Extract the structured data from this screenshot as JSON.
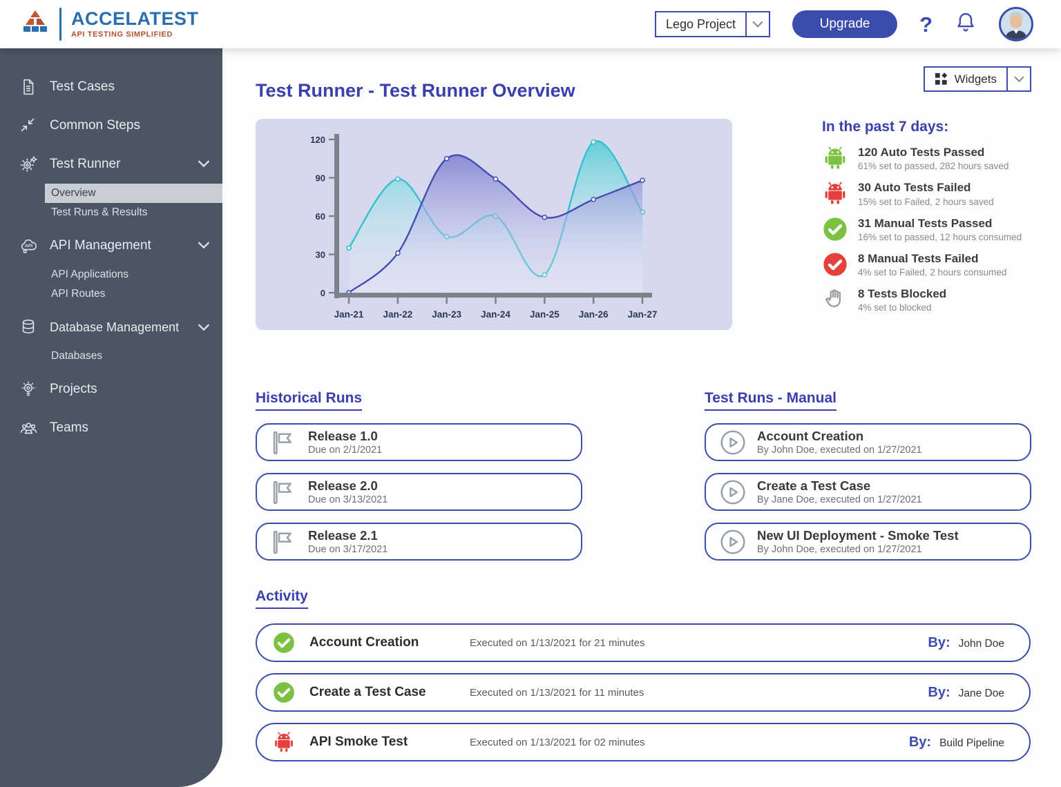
{
  "header": {
    "logo_title": "ACCELATEST",
    "logo_subtitle": "API TESTING SIMPLIFIED",
    "project_select_value": "Lego Project",
    "upgrade_label": "Upgrade",
    "help_glyph": "?"
  },
  "sidebar": {
    "items": [
      {
        "icon": "document-icon",
        "label": "Test Cases"
      },
      {
        "icon": "compress-arrows-icon",
        "label": "Common Steps"
      },
      {
        "icon": "gear-icon",
        "label": "Test Runner",
        "expanded": true,
        "children": [
          {
            "label": "Overview",
            "active": true
          },
          {
            "label": "Test Runs & Results"
          }
        ]
      },
      {
        "icon": "api-cloud-icon",
        "label": "API Management",
        "expanded": true,
        "children": [
          {
            "label": "API Applications"
          },
          {
            "label": "API Routes"
          }
        ]
      },
      {
        "icon": "database-icon",
        "label": "Database Management",
        "expanded": true,
        "children": [
          {
            "label": "Databases"
          }
        ]
      },
      {
        "icon": "lightbulb-gear-icon",
        "label": "Projects"
      },
      {
        "icon": "people-icon",
        "label": "Teams"
      }
    ]
  },
  "main": {
    "title": "Test Runner - Test Runner Overview",
    "widgets_label": "Widgets",
    "stats": {
      "heading": "In the past 7 days:",
      "items": [
        {
          "icon": "android-green-icon",
          "title": "120 Auto Tests Passed",
          "subtitle": "61% set to passed, 282 hours saved"
        },
        {
          "icon": "android-red-icon",
          "title": "30  Auto Tests Failed",
          "subtitle": "15% set to Failed, 2 hours saved"
        },
        {
          "icon": "check-circle-green-icon",
          "title": "31 Manual Tests Passed",
          "subtitle": "16% set to passed, 12 hours consumed"
        },
        {
          "icon": "check-circle-red-icon",
          "title": "8 Manual Tests Failed",
          "subtitle": "4% set to Failed, 2 hours consumed"
        },
        {
          "icon": "hand-icon",
          "title": "8 Tests Blocked",
          "subtitle": "4% set to blocked"
        }
      ]
    },
    "historical_runs": {
      "heading": "Historical Runs",
      "items": [
        {
          "icon": "flag-icon",
          "title": "Release 1.0",
          "subtitle": "Due on 2/1/2021"
        },
        {
          "icon": "flag-icon",
          "title": "Release 2.0",
          "subtitle": "Due on 3/13/2021"
        },
        {
          "icon": "flag-icon",
          "title": "Release 2.1",
          "subtitle": "Due on 3/17/2021"
        }
      ]
    },
    "manual_runs": {
      "heading": "Test Runs - Manual",
      "items": [
        {
          "icon": "play-circle-icon",
          "title": "Account Creation",
          "subtitle": "By John Doe, executed on 1/27/2021"
        },
        {
          "icon": "play-circle-icon",
          "title": "Create a Test Case",
          "subtitle": "By Jane Doe, executed on 1/27/2021"
        },
        {
          "icon": "play-circle-icon",
          "title": "New UI Deployment - Smoke Test",
          "subtitle": "By John Doe, executed on 1/27/2021"
        }
      ]
    },
    "activity": {
      "heading": "Activity",
      "by_label": "By:",
      "items": [
        {
          "icon": "check-circle-green-icon",
          "title": "Account Creation",
          "detail": "Executed on 1/13/2021 for 21 minutes",
          "by": "John Doe"
        },
        {
          "icon": "check-circle-green-icon",
          "title": "Create a Test Case",
          "detail": "Executed on 1/13/2021 for 11 minutes",
          "by": "Jane Doe"
        },
        {
          "icon": "android-red-icon",
          "title": "API Smoke Test",
          "detail": "Executed on 1/13/2021 for 02 minutes",
          "by": "Build Pipeline"
        }
      ]
    }
  },
  "chart_data": {
    "type": "area",
    "x": [
      "Jan-21",
      "Jan-22",
      "Jan-23",
      "Jan-24",
      "Jan-25",
      "Jan-26",
      "Jan-27"
    ],
    "series": [
      {
        "name": "auto-tests",
        "color": "#35bfce",
        "fill_top": "rgba(86,205,213,0.92)",
        "fill_bottom": "rgba(255,255,255,0.08)",
        "values": [
          35,
          89,
          44,
          60,
          14,
          118,
          63
        ]
      },
      {
        "name": "manual-tests",
        "color": "#454bb2",
        "fill_top": "rgba(112,116,205,0.95)",
        "fill_bottom": "rgba(240,240,250,0.18)",
        "values": [
          0,
          31,
          105,
          89,
          59,
          73,
          88
        ]
      }
    ],
    "ylim": [
      0,
      120
    ],
    "yticks": [
      0,
      30,
      60,
      90,
      120
    ],
    "grid": false,
    "legend": "none",
    "axis_color": "#7b828c",
    "tick_label_color": "#2b3558"
  },
  "colors": {
    "accent": "#3c4cae",
    "heading": "#3a3fae",
    "sidebar_bg": "#4b5563",
    "green": "#7cc142",
    "red": "#e6403c",
    "chart_panel": "#d6d9ee",
    "logo_blue": "#2b6fb0",
    "logo_orange": "#b5502e"
  }
}
